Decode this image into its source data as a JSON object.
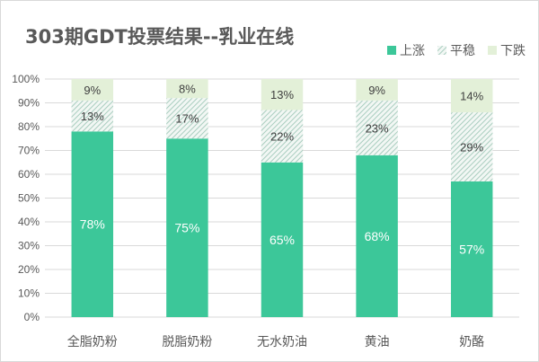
{
  "colors": {
    "up": "#3CC799",
    "flat_stripe": "#A9CDBF",
    "flat_bg": "#F2F7F4",
    "down": "#E3F0D8",
    "grid": "#d9d9d9",
    "text": "#595959"
  },
  "chart_data": {
    "type": "bar",
    "stacked": true,
    "title": "303期GDT投票结果--乳业在线",
    "categories": [
      "全脂奶粉",
      "脱脂奶粉",
      "无水奶油",
      "黄油",
      "奶酪"
    ],
    "series": [
      {
        "name": "上涨",
        "values": [
          78,
          75,
          65,
          68,
          57
        ],
        "labels": [
          "78%",
          "75%",
          "65%",
          "68%",
          "57%"
        ]
      },
      {
        "name": "平稳",
        "values": [
          13,
          17,
          22,
          23,
          29
        ],
        "labels": [
          "13%",
          "17%",
          "22%",
          "23%",
          "29%"
        ]
      },
      {
        "name": "下跌",
        "values": [
          9,
          8,
          13,
          9,
          14
        ],
        "labels": [
          "9%",
          "8%",
          "13%",
          "9%",
          "14%"
        ]
      }
    ],
    "yticks": [
      "0%",
      "10%",
      "20%",
      "30%",
      "40%",
      "50%",
      "60%",
      "70%",
      "80%",
      "90%",
      "100%"
    ],
    "ylim": [
      0,
      100
    ],
    "legend_position": "top-right",
    "grid": true
  }
}
